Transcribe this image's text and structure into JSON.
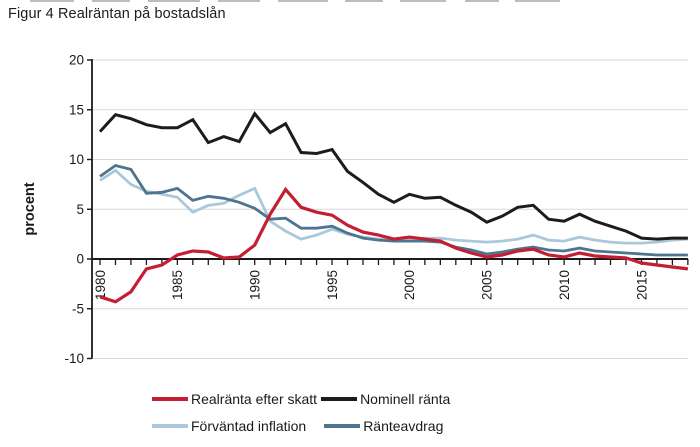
{
  "page": {
    "title": "Figur 4 Realräntan på bostadslån"
  },
  "chart_data": {
    "type": "line",
    "title": "Figur 4 Realräntan på bostadslån",
    "ylabel": "procent",
    "xlabel": "",
    "ylim": [
      -10,
      20
    ],
    "y_ticks": [
      20,
      15,
      10,
      5,
      0,
      -5,
      -10
    ],
    "grid": "horizontal light gray lines, black zero axis, black left axis",
    "x_tick_label_rotation": -90,
    "legend_position": "bottom",
    "x": [
      1980,
      1981,
      1982,
      1983,
      1984,
      1985,
      1986,
      1987,
      1988,
      1989,
      1990,
      1991,
      1992,
      1993,
      1994,
      1995,
      1996,
      1997,
      1998,
      1999,
      2000,
      2001,
      2002,
      2003,
      2004,
      2005,
      2006,
      2007,
      2008,
      2009,
      2010,
      2011,
      2012,
      2013,
      2014,
      2015,
      2016,
      2017,
      2018
    ],
    "x_tick_labels": [
      "1980",
      "1985",
      "1990",
      "1995",
      "2000",
      "2005",
      "2010",
      "2015"
    ],
    "series": [
      {
        "name": "Realränta efter skatt",
        "color": "#C41E32",
        "values": [
          -3.8,
          -4.3,
          -3.3,
          -1.0,
          -0.6,
          0.4,
          0.8,
          0.7,
          0.1,
          0.2,
          1.4,
          4.5,
          7.0,
          5.2,
          4.7,
          4.4,
          3.4,
          2.7,
          2.4,
          2.0,
          2.2,
          2.0,
          1.8,
          1.1,
          0.6,
          0.2,
          0.4,
          0.8,
          1.0,
          0.4,
          0.2,
          0.6,
          0.3,
          0.2,
          0.1,
          -0.4,
          -0.6,
          -0.8,
          -1.0
        ]
      },
      {
        "name": "Nominell ränta",
        "color": "#1C1C1C",
        "values": [
          12.8,
          14.5,
          14.1,
          13.5,
          13.2,
          13.2,
          14.0,
          11.7,
          12.3,
          11.8,
          14.6,
          12.7,
          13.6,
          10.7,
          10.6,
          11.0,
          8.8,
          7.7,
          6.5,
          5.7,
          6.5,
          6.1,
          6.2,
          5.4,
          4.7,
          3.7,
          4.3,
          5.2,
          5.4,
          4.0,
          3.8,
          4.5,
          3.8,
          3.3,
          2.8,
          2.1,
          2.0,
          2.1,
          2.1
        ]
      },
      {
        "name": "Förväntad inflation",
        "color": "#A9C9DB",
        "values": [
          7.9,
          8.9,
          7.5,
          6.8,
          6.5,
          6.2,
          4.7,
          5.4,
          5.6,
          6.4,
          7.1,
          3.8,
          2.8,
          2.0,
          2.4,
          3.0,
          2.5,
          2.2,
          2.0,
          2.0,
          2.0,
          2.1,
          2.1,
          1.9,
          1.8,
          1.7,
          1.8,
          2.0,
          2.4,
          1.9,
          1.8,
          2.2,
          1.9,
          1.7,
          1.6,
          1.6,
          1.7,
          1.9,
          2.0
        ]
      },
      {
        "name": "Ränteavdrag",
        "color": "#4E7490",
        "values": [
          8.3,
          9.4,
          9.0,
          6.6,
          6.7,
          7.1,
          5.9,
          6.3,
          6.1,
          5.7,
          5.1,
          4.0,
          4.1,
          3.1,
          3.1,
          3.3,
          2.6,
          2.1,
          1.9,
          1.8,
          1.8,
          1.8,
          1.7,
          1.2,
          0.9,
          0.5,
          0.7,
          1.0,
          1.2,
          0.9,
          0.8,
          1.1,
          0.8,
          0.7,
          0.6,
          0.5,
          0.4,
          0.4,
          0.4
        ]
      }
    ]
  }
}
